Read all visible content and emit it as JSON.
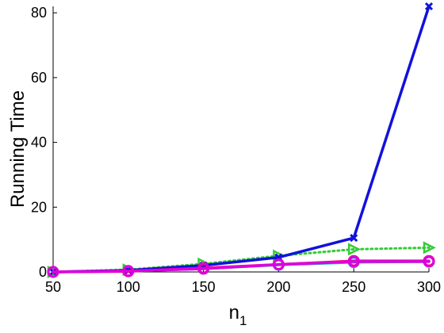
{
  "chart_data": {
    "type": "line",
    "xlabel": {
      "base": "n",
      "sub": "1"
    },
    "ylabel": "Running Time",
    "xlim": [
      50,
      300
    ],
    "ylim": [
      0,
      82
    ],
    "x_ticks": [
      "50",
      "100",
      "150",
      "200",
      "250",
      "300"
    ],
    "y_ticks": [
      "0",
      "20",
      "40",
      "60",
      "80"
    ],
    "grid": false,
    "legend": "none",
    "x": [
      50,
      100,
      150,
      200,
      250,
      300
    ],
    "series": [
      {
        "color": "#33cc33",
        "line": "dotted",
        "marker": "triangle-right",
        "values": [
          0.0,
          0.7,
          2.5,
          5.0,
          7.0,
          7.5
        ]
      },
      {
        "color": "#00cccc",
        "line": "solid",
        "marker": "circle",
        "values": [
          0.0,
          0.3,
          1.0,
          2.2,
          3.0,
          3.2
        ]
      },
      {
        "color": "#1111dd",
        "line": "solid",
        "marker": "x",
        "values": [
          0.0,
          0.5,
          2.0,
          4.5,
          10.5,
          82.0
        ]
      },
      {
        "color": "#ff0080",
        "line": "solid",
        "marker": "circle",
        "values": [
          0.0,
          0.2,
          1.2,
          2.3,
          3.4,
          3.4
        ]
      },
      {
        "color": "#dd00dd",
        "line": "solid",
        "marker": "circle",
        "values": [
          0.0,
          0.3,
          1.0,
          2.3,
          3.2,
          3.2
        ]
      }
    ]
  }
}
